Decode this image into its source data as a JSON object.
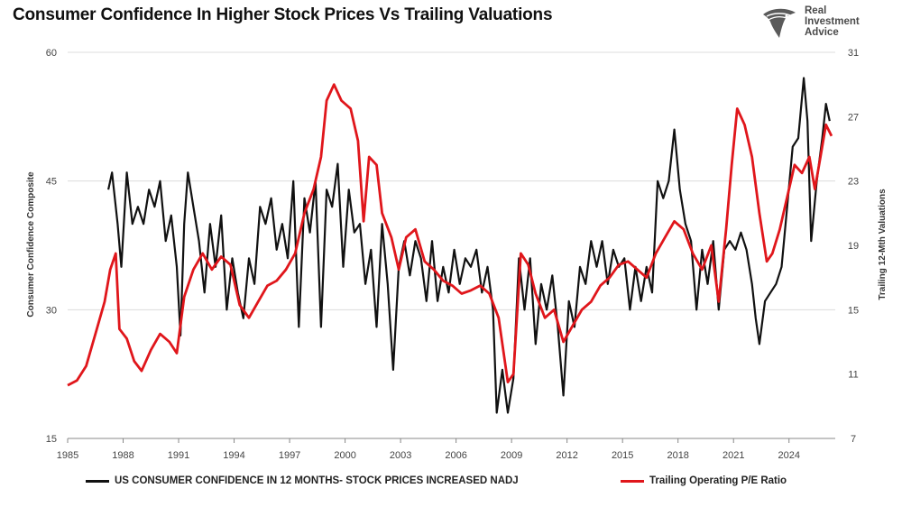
{
  "header": {
    "title": "Consumer Confidence In Higher Stock Prices Vs Trailing Valuations"
  },
  "logo": {
    "line1": "Real",
    "line2": "Investment",
    "line3": "Advice",
    "icon": "eagle-head-icon"
  },
  "colors": {
    "series1": "#111111",
    "series2": "#e0161b",
    "grid": "#dcdcdc",
    "axis": "#555555"
  },
  "chart_data": {
    "type": "line",
    "title": "Consumer Confidence In Higher Stock Prices Vs Trailing Valuations",
    "xlabel": "",
    "ylabel_left": "Consumer Confidence Composite",
    "ylabel_right": "Trailing 12-Mth Valuations",
    "xlim": [
      1985,
      2026.5
    ],
    "ylim_left": [
      15,
      60
    ],
    "ylim_right": [
      7,
      31
    ],
    "x_ticks": [
      "1985",
      "1988",
      "1991",
      "1994",
      "1997",
      "2000",
      "2003",
      "2006",
      "2009",
      "2012",
      "2015",
      "2018",
      "2021",
      "2024"
    ],
    "y_ticks_left": [
      "15",
      "30",
      "45",
      "60"
    ],
    "y_ticks_right": [
      "7",
      "11",
      "15",
      "19",
      "23",
      "27",
      "31"
    ],
    "grid": true,
    "legend_position": "bottom",
    "series": [
      {
        "name": "US CONSUMER CONFIDENCE IN 12 MONTHS- STOCK PRICES INCREASED NADJ",
        "axis": "left",
        "points": [
          [
            1987.2,
            44
          ],
          [
            1987.4,
            46
          ],
          [
            1987.7,
            40
          ],
          [
            1987.9,
            35
          ],
          [
            1988.2,
            46
          ],
          [
            1988.5,
            40
          ],
          [
            1988.8,
            42
          ],
          [
            1989.1,
            40
          ],
          [
            1989.4,
            44
          ],
          [
            1989.7,
            42
          ],
          [
            1990.0,
            45
          ],
          [
            1990.3,
            38
          ],
          [
            1990.6,
            41
          ],
          [
            1990.9,
            35
          ],
          [
            1991.1,
            27
          ],
          [
            1991.3,
            40
          ],
          [
            1991.5,
            46
          ],
          [
            1991.8,
            42
          ],
          [
            1992.1,
            38
          ],
          [
            1992.4,
            32
          ],
          [
            1992.7,
            40
          ],
          [
            1993.0,
            35
          ],
          [
            1993.3,
            41
          ],
          [
            1993.6,
            30
          ],
          [
            1993.9,
            36
          ],
          [
            1994.2,
            32
          ],
          [
            1994.5,
            29
          ],
          [
            1994.8,
            36
          ],
          [
            1995.1,
            33
          ],
          [
            1995.4,
            42
          ],
          [
            1995.7,
            40
          ],
          [
            1996.0,
            43
          ],
          [
            1996.3,
            37
          ],
          [
            1996.6,
            40
          ],
          [
            1996.9,
            36
          ],
          [
            1997.2,
            45
          ],
          [
            1997.5,
            28
          ],
          [
            1997.8,
            43
          ],
          [
            1998.1,
            39
          ],
          [
            1998.4,
            45
          ],
          [
            1998.7,
            28
          ],
          [
            1999.0,
            44
          ],
          [
            1999.3,
            42
          ],
          [
            1999.6,
            47
          ],
          [
            1999.9,
            35
          ],
          [
            2000.2,
            44
          ],
          [
            2000.5,
            39
          ],
          [
            2000.8,
            40
          ],
          [
            2001.1,
            33
          ],
          [
            2001.4,
            37
          ],
          [
            2001.7,
            28
          ],
          [
            2002.0,
            40
          ],
          [
            2002.3,
            33
          ],
          [
            2002.6,
            23
          ],
          [
            2002.9,
            35
          ],
          [
            2003.2,
            38
          ],
          [
            2003.5,
            34
          ],
          [
            2003.8,
            38
          ],
          [
            2004.1,
            36
          ],
          [
            2004.4,
            31
          ],
          [
            2004.7,
            38
          ],
          [
            2005.0,
            31
          ],
          [
            2005.3,
            35
          ],
          [
            2005.6,
            32
          ],
          [
            2005.9,
            37
          ],
          [
            2006.2,
            33
          ],
          [
            2006.5,
            36
          ],
          [
            2006.8,
            35
          ],
          [
            2007.1,
            37
          ],
          [
            2007.4,
            32
          ],
          [
            2007.7,
            35
          ],
          [
            2008.0,
            30
          ],
          [
            2008.2,
            18
          ],
          [
            2008.5,
            23
          ],
          [
            2008.8,
            18
          ],
          [
            2009.1,
            22
          ],
          [
            2009.4,
            36
          ],
          [
            2009.7,
            30
          ],
          [
            2010.0,
            36
          ],
          [
            2010.3,
            26
          ],
          [
            2010.6,
            33
          ],
          [
            2010.9,
            30
          ],
          [
            2011.2,
            34
          ],
          [
            2011.5,
            28
          ],
          [
            2011.8,
            20
          ],
          [
            2012.1,
            31
          ],
          [
            2012.4,
            28
          ],
          [
            2012.7,
            35
          ],
          [
            2013.0,
            33
          ],
          [
            2013.3,
            38
          ],
          [
            2013.6,
            35
          ],
          [
            2013.9,
            38
          ],
          [
            2014.2,
            33
          ],
          [
            2014.5,
            37
          ],
          [
            2014.8,
            35
          ],
          [
            2015.1,
            36
          ],
          [
            2015.4,
            30
          ],
          [
            2015.7,
            35
          ],
          [
            2016.0,
            31
          ],
          [
            2016.3,
            35
          ],
          [
            2016.6,
            32
          ],
          [
            2016.9,
            45
          ],
          [
            2017.2,
            43
          ],
          [
            2017.5,
            45
          ],
          [
            2017.8,
            51
          ],
          [
            2018.1,
            44
          ],
          [
            2018.4,
            40
          ],
          [
            2018.7,
            38
          ],
          [
            2019.0,
            30
          ],
          [
            2019.3,
            37
          ],
          [
            2019.6,
            33
          ],
          [
            2019.9,
            38
          ],
          [
            2020.2,
            30
          ],
          [
            2020.5,
            37
          ],
          [
            2020.8,
            38
          ],
          [
            2021.1,
            37
          ],
          [
            2021.4,
            39
          ],
          [
            2021.7,
            37
          ],
          [
            2022.0,
            33
          ],
          [
            2022.2,
            29
          ],
          [
            2022.4,
            26
          ],
          [
            2022.7,
            31
          ],
          [
            2023.0,
            32
          ],
          [
            2023.3,
            33
          ],
          [
            2023.6,
            35
          ],
          [
            2023.9,
            42
          ],
          [
            2024.2,
            49
          ],
          [
            2024.5,
            50
          ],
          [
            2024.8,
            57
          ],
          [
            2025.0,
            52
          ],
          [
            2025.2,
            38
          ],
          [
            2025.5,
            45
          ],
          [
            2025.8,
            50
          ],
          [
            2026.0,
            54
          ],
          [
            2026.2,
            52
          ]
        ]
      },
      {
        "name": "Trailing Operating P/E Ratio",
        "axis": "right",
        "points": [
          [
            1985.0,
            10.3
          ],
          [
            1985.5,
            10.6
          ],
          [
            1986.0,
            11.5
          ],
          [
            1986.5,
            13.5
          ],
          [
            1987.0,
            15.5
          ],
          [
            1987.3,
            17.5
          ],
          [
            1987.6,
            18.5
          ],
          [
            1987.8,
            13.8
          ],
          [
            1988.2,
            13.2
          ],
          [
            1988.6,
            11.8
          ],
          [
            1989.0,
            11.2
          ],
          [
            1989.5,
            12.5
          ],
          [
            1990.0,
            13.5
          ],
          [
            1990.5,
            13.0
          ],
          [
            1990.9,
            12.3
          ],
          [
            1991.3,
            15.8
          ],
          [
            1991.8,
            17.5
          ],
          [
            1992.3,
            18.5
          ],
          [
            1992.8,
            17.5
          ],
          [
            1993.3,
            18.3
          ],
          [
            1993.8,
            17.8
          ],
          [
            1994.3,
            15.3
          ],
          [
            1994.8,
            14.5
          ],
          [
            1995.3,
            15.5
          ],
          [
            1995.8,
            16.5
          ],
          [
            1996.3,
            16.8
          ],
          [
            1996.8,
            17.5
          ],
          [
            1997.3,
            18.5
          ],
          [
            1997.8,
            21.0
          ],
          [
            1998.3,
            22.5
          ],
          [
            1998.7,
            24.5
          ],
          [
            1999.0,
            28.0
          ],
          [
            1999.4,
            29.0
          ],
          [
            1999.8,
            28.0
          ],
          [
            2000.3,
            27.5
          ],
          [
            2000.7,
            25.5
          ],
          [
            2001.0,
            20.5
          ],
          [
            2001.3,
            24.5
          ],
          [
            2001.7,
            24.0
          ],
          [
            2002.0,
            21.0
          ],
          [
            2002.5,
            19.5
          ],
          [
            2002.9,
            17.5
          ],
          [
            2003.3,
            19.5
          ],
          [
            2003.8,
            20.0
          ],
          [
            2004.3,
            18.0
          ],
          [
            2004.8,
            17.5
          ],
          [
            2005.3,
            16.8
          ],
          [
            2005.8,
            16.5
          ],
          [
            2006.3,
            16.0
          ],
          [
            2006.8,
            16.2
          ],
          [
            2007.3,
            16.5
          ],
          [
            2007.8,
            16.0
          ],
          [
            2008.3,
            14.5
          ],
          [
            2008.8,
            10.5
          ],
          [
            2009.1,
            11.0
          ],
          [
            2009.5,
            18.5
          ],
          [
            2009.9,
            17.8
          ],
          [
            2010.3,
            16.0
          ],
          [
            2010.8,
            14.5
          ],
          [
            2011.3,
            15.0
          ],
          [
            2011.8,
            13.0
          ],
          [
            2012.3,
            14.0
          ],
          [
            2012.8,
            15.0
          ],
          [
            2013.3,
            15.5
          ],
          [
            2013.8,
            16.5
          ],
          [
            2014.3,
            17.0
          ],
          [
            2014.8,
            17.8
          ],
          [
            2015.3,
            18.0
          ],
          [
            2015.8,
            17.5
          ],
          [
            2016.3,
            17.0
          ],
          [
            2016.8,
            18.5
          ],
          [
            2017.3,
            19.5
          ],
          [
            2017.8,
            20.5
          ],
          [
            2018.3,
            20.0
          ],
          [
            2018.8,
            18.5
          ],
          [
            2019.3,
            17.5
          ],
          [
            2019.8,
            19.0
          ],
          [
            2020.2,
            15.5
          ],
          [
            2020.6,
            20.0
          ],
          [
            2020.9,
            24.0
          ],
          [
            2021.2,
            27.5
          ],
          [
            2021.6,
            26.5
          ],
          [
            2022.0,
            24.5
          ],
          [
            2022.4,
            21.0
          ],
          [
            2022.8,
            18.0
          ],
          [
            2023.1,
            18.5
          ],
          [
            2023.5,
            20.0
          ],
          [
            2023.9,
            22.0
          ],
          [
            2024.3,
            24.0
          ],
          [
            2024.7,
            23.5
          ],
          [
            2025.1,
            24.5
          ],
          [
            2025.4,
            22.5
          ],
          [
            2025.7,
            24.5
          ],
          [
            2026.0,
            26.5
          ],
          [
            2026.3,
            25.8
          ]
        ]
      }
    ]
  },
  "legend": {
    "item1": "US CONSUMER CONFIDENCE IN 12 MONTHS- STOCK PRICES INCREASED NADJ",
    "item2": "Trailing Operating P/E Ratio"
  }
}
